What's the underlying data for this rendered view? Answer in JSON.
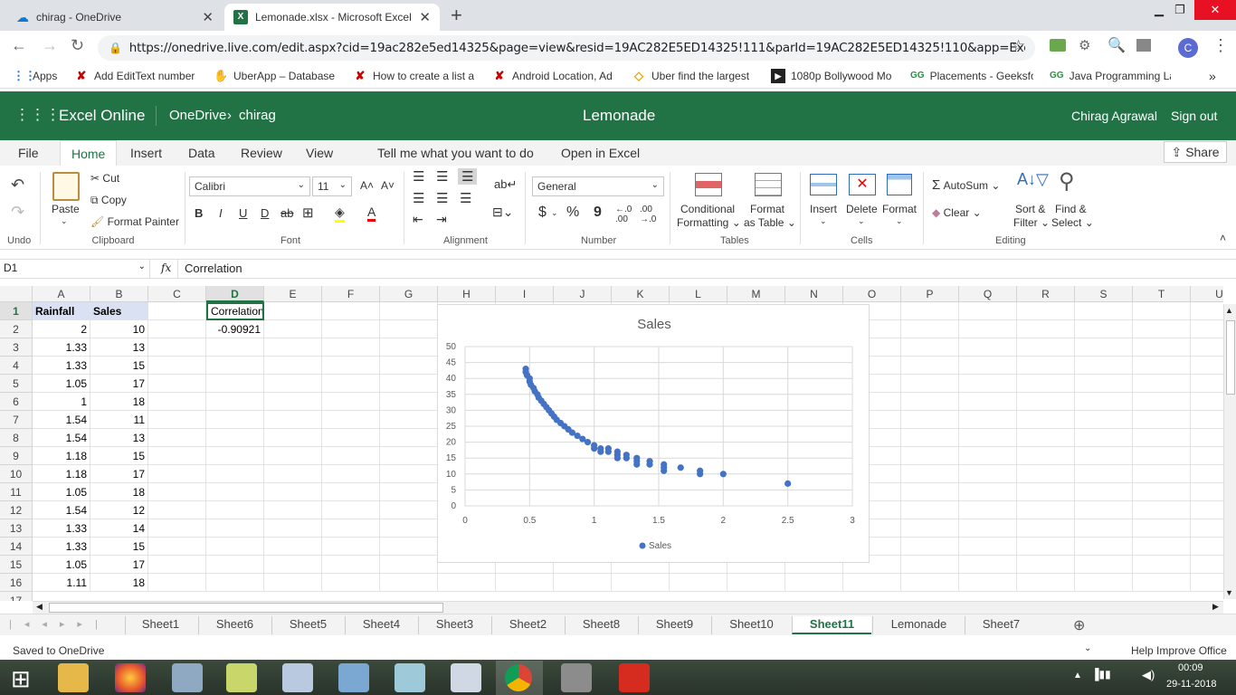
{
  "browser": {
    "tabs": [
      {
        "title": "chirag - OneDrive"
      },
      {
        "title": "Lemonade.xlsx - Microsoft Excel O"
      }
    ],
    "url": "https://onedrive.live.com/edit.aspx?cid=19ac282e5ed14325&page=view&resid=19AC282E5ED14325!111&parId=19AC282E5ED14325!110&app=Excel",
    "profile_initial": "C",
    "bookmarks": [
      "Apps",
      "Add EditText number",
      "UberApp – Database",
      "How to create a list a",
      "Android Location, Ad",
      "Uber find the largest",
      "1080p Bollywood Mo",
      "Placements - Geeksfo",
      "Java Programming La"
    ]
  },
  "excel": {
    "app_name": "Excel Online",
    "breadcrumb_root": "OneDrive",
    "breadcrumb_sep": "›",
    "breadcrumb_folder": "chirag",
    "doc_title": "Lemonade",
    "user": "Chirag Agrawal",
    "sign_out": "Sign out"
  },
  "ribbon": {
    "tabs": [
      "File",
      "Home",
      "Insert",
      "Data",
      "Review",
      "View"
    ],
    "tell_me": "Tell me what you want to do",
    "open_in_excel": "Open in Excel",
    "share": "Share",
    "clipboard": {
      "paste": "Paste",
      "cut": "Cut",
      "copy": "Copy",
      "format_painter": "Format Painter",
      "label": "Clipboard"
    },
    "undo_label": "Undo",
    "font": {
      "name": "Calibri",
      "size": "11",
      "label": "Font",
      "bold": "B",
      "italic": "I",
      "underline": "U",
      "dbl_underline": "D",
      "strike": "ab"
    },
    "alignment_label": "Alignment",
    "number": {
      "format": "General",
      "label": "Number",
      "currency": "$",
      "percent": "%",
      "comma": "9"
    },
    "tables": {
      "conditional_1": "Conditional",
      "conditional_2": "Formatting",
      "format_1": "Format",
      "format_2": "as Table",
      "label": "Tables"
    },
    "cells": {
      "insert": "Insert",
      "delete": "Delete",
      "format": "Format",
      "label": "Cells"
    },
    "editing": {
      "autosum": "AutoSum",
      "clear": "Clear",
      "sort_1": "Sort &",
      "sort_2": "Filter",
      "find_1": "Find &",
      "find_2": "Select",
      "label": "Editing"
    }
  },
  "formula_bar": {
    "name_box": "D1",
    "fx": "fx",
    "formula": "Correlation"
  },
  "grid": {
    "columns": [
      "A",
      "B",
      "C",
      "D",
      "E",
      "F",
      "G",
      "H",
      "I",
      "J",
      "K",
      "L",
      "M",
      "N",
      "O",
      "P",
      "Q",
      "R",
      "S",
      "T",
      "U"
    ],
    "rows": [
      {
        "n": "1",
        "a": "Rainfall",
        "b": "Sales",
        "d": "Correlation"
      },
      {
        "n": "2",
        "a": "2",
        "b": "10",
        "d": "-0.90921"
      },
      {
        "n": "3",
        "a": "1.33",
        "b": "13",
        "d": ""
      },
      {
        "n": "4",
        "a": "1.33",
        "b": "15",
        "d": ""
      },
      {
        "n": "5",
        "a": "1.05",
        "b": "17",
        "d": ""
      },
      {
        "n": "6",
        "a": "1",
        "b": "18",
        "d": ""
      },
      {
        "n": "7",
        "a": "1.54",
        "b": "11",
        "d": ""
      },
      {
        "n": "8",
        "a": "1.54",
        "b": "13",
        "d": ""
      },
      {
        "n": "9",
        "a": "1.18",
        "b": "15",
        "d": ""
      },
      {
        "n": "10",
        "a": "1.18",
        "b": "17",
        "d": ""
      },
      {
        "n": "11",
        "a": "1.05",
        "b": "18",
        "d": ""
      },
      {
        "n": "12",
        "a": "1.54",
        "b": "12",
        "d": ""
      },
      {
        "n": "13",
        "a": "1.33",
        "b": "14",
        "d": ""
      },
      {
        "n": "14",
        "a": "1.33",
        "b": "15",
        "d": ""
      },
      {
        "n": "15",
        "a": "1.05",
        "b": "17",
        "d": ""
      },
      {
        "n": "16",
        "a": "1.11",
        "b": "18",
        "d": ""
      }
    ]
  },
  "chart_data": {
    "type": "scatter",
    "title": "Sales",
    "xlim": [
      0,
      3
    ],
    "ylim": [
      0,
      50
    ],
    "x_ticks": [
      "0",
      "0.5",
      "1",
      "1.5",
      "2",
      "2.5",
      "3"
    ],
    "y_ticks": [
      "0",
      "5",
      "10",
      "15",
      "20",
      "25",
      "30",
      "35",
      "40",
      "45",
      "50"
    ],
    "grid": true,
    "legend": "bottom",
    "color": "#4472c4",
    "series": [
      {
        "name": "Sales",
        "points": [
          [
            0.47,
            43
          ],
          [
            0.47,
            42
          ],
          [
            0.48,
            41
          ],
          [
            0.5,
            40
          ],
          [
            0.5,
            39
          ],
          [
            0.51,
            38
          ],
          [
            0.53,
            37
          ],
          [
            0.54,
            36
          ],
          [
            0.56,
            35
          ],
          [
            0.57,
            34
          ],
          [
            0.59,
            33
          ],
          [
            0.61,
            32
          ],
          [
            0.63,
            31
          ],
          [
            0.65,
            30
          ],
          [
            0.67,
            29
          ],
          [
            0.69,
            28
          ],
          [
            0.71,
            27
          ],
          [
            0.74,
            26
          ],
          [
            0.77,
            25
          ],
          [
            0.8,
            24
          ],
          [
            0.83,
            23
          ],
          [
            0.87,
            22
          ],
          [
            0.91,
            21
          ],
          [
            0.95,
            20
          ],
          [
            1,
            19
          ],
          [
            1,
            18
          ],
          [
            1.05,
            18
          ],
          [
            1.05,
            17
          ],
          [
            1.11,
            17
          ],
          [
            1.11,
            18
          ],
          [
            1.18,
            17
          ],
          [
            1.18,
            16
          ],
          [
            1.18,
            15
          ],
          [
            1.25,
            16
          ],
          [
            1.25,
            15
          ],
          [
            1.33,
            15
          ],
          [
            1.33,
            14
          ],
          [
            1.33,
            13
          ],
          [
            1.43,
            14
          ],
          [
            1.43,
            13
          ],
          [
            1.54,
            13
          ],
          [
            1.54,
            12
          ],
          [
            1.54,
            11
          ],
          [
            1.67,
            12
          ],
          [
            1.82,
            11
          ],
          [
            1.82,
            10
          ],
          [
            2,
            10
          ],
          [
            2.5,
            7
          ]
        ]
      }
    ]
  },
  "sheets": [
    "Sheet1",
    "Sheet6",
    "Sheet5",
    "Sheet4",
    "Sheet3",
    "Sheet2",
    "Sheet8",
    "Sheet9",
    "Sheet10",
    "Sheet11",
    "Lemonade",
    "Sheet7"
  ],
  "active_sheet": "Sheet11",
  "status": {
    "left": "Saved to OneDrive",
    "right": "Help Improve Office"
  },
  "taskbar": {
    "time": "00:09",
    "date": "29-11-2018"
  }
}
